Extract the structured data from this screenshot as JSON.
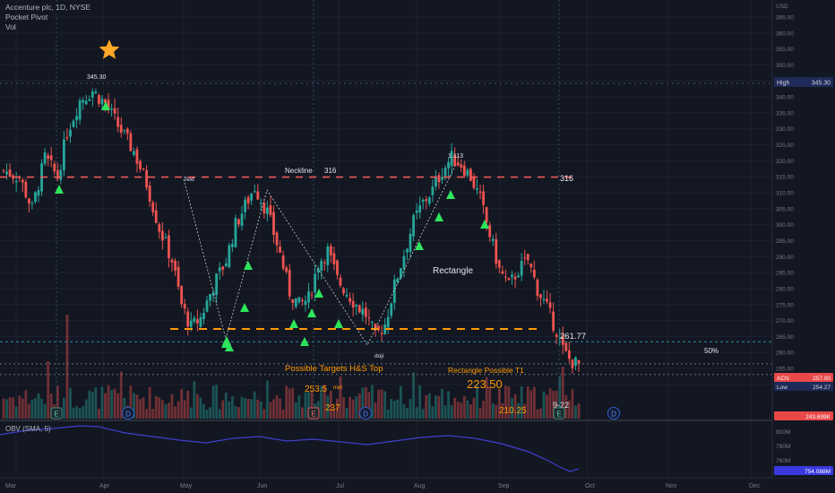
{
  "header": {
    "symbol_line": "Accenture plc, 1D, NYSE",
    "indicator_1": "Pocket Pivot",
    "indicator_2": "Vol"
  },
  "price_axis": {
    "currency": "USD",
    "ticks": [
      "365.00",
      "360.00",
      "355.00",
      "350.00",
      "345.00",
      "340.00",
      "335.00",
      "330.00",
      "325.00",
      "320.00",
      "315.00",
      "310.00",
      "305.00",
      "300.00",
      "295.00",
      "290.00",
      "285.00",
      "280.00",
      "275.00",
      "270.00",
      "265.00",
      "260.00",
      "255.00",
      "250.00"
    ],
    "high_label": "High",
    "high_value": "345.30",
    "symbol_label": "ACN",
    "last_value": "257.00",
    "low_label": "Low",
    "low_value": "254.27",
    "volume_value": "243.699K"
  },
  "obv_axis": {
    "ticks": [
      "800M",
      "780M",
      "760M"
    ],
    "current_value": "754.088M"
  },
  "obv_legend": "OBV (SMA, 5)",
  "time_axis": [
    "Mar",
    "Apr",
    "May",
    "Jun",
    "Jul",
    "Aug",
    "Sep",
    "Oct",
    "Nov",
    "Dec"
  ],
  "annotations": {
    "high_point": "345.30",
    "neckline": "Neckline",
    "neckline_level_mid": "316",
    "neckline_level_right": "316",
    "text_marker": "Text",
    "top_point": "1.113",
    "rectangle": "Rectangle",
    "doji": "doji",
    "level_261": "261.77",
    "fifty_percent": "50%",
    "hs_targets": "Possible Targets H&S Top",
    "target_253": "253.5",
    "target_253_suffix": "met",
    "target_237": "237",
    "rect_target_title": "Rectangle Possible T1",
    "rect_target_value": "223.50",
    "target_210": "210.25",
    "date_9_22": "9-22"
  },
  "event_badges": {
    "earnings": "E",
    "dividend": "D"
  },
  "colors": {
    "background": "#131722",
    "up": "#26a69a",
    "down": "#ef5350",
    "neckline": "#f05a5a",
    "support": "#ff9800",
    "obv_line": "#3f3fd0",
    "triangle": "#2ee65c",
    "star": "#ffa726"
  }
}
